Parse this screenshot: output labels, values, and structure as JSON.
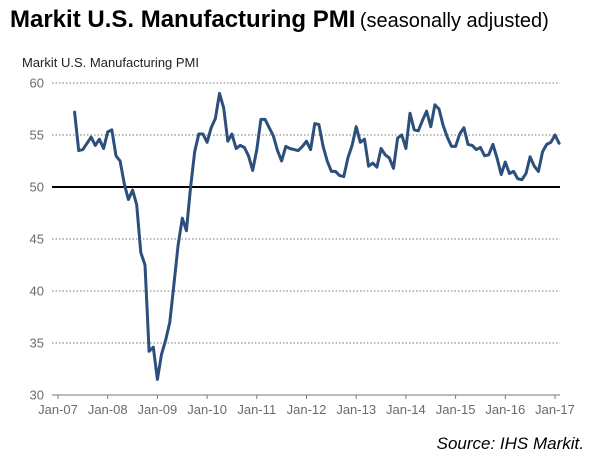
{
  "header": {
    "title": "Markit U.S. Manufacturing PMI",
    "subtitle": "(seasonally adjusted)"
  },
  "source": "Source: IHS Markit.",
  "colors": {
    "line": "#2c4f7c",
    "grid": "#7a7a7a",
    "threshold": "#000000",
    "tick_text": "#6b6b6b"
  },
  "chart_data": {
    "type": "line",
    "title": "Markit U.S. Manufacturing PMI",
    "subtitle": "(seasonally adjusted)",
    "plot_label": "Markit U.S. Manufacturing PMI",
    "xlabel": "",
    "ylabel": "",
    "ylim": [
      30,
      60
    ],
    "y_ticks": [
      30,
      35,
      40,
      45,
      50,
      55,
      60
    ],
    "x_ticks": [
      "Jan-07",
      "Jan-08",
      "Jan-09",
      "Jan-10",
      "Jan-11",
      "Jan-12",
      "Jan-13",
      "Jan-14",
      "Jan-15",
      "Jan-16",
      "Jan-17"
    ],
    "grid": "horizontal dashed",
    "reference_line": 50,
    "legend": "none",
    "series": [
      {
        "x": [
          "2007-05",
          "2007-06",
          "2007-07",
          "2007-08",
          "2007-09",
          "2007-10",
          "2007-11",
          "2007-12",
          "2008-01",
          "2008-02",
          "2008-03",
          "2008-04",
          "2008-05",
          "2008-06",
          "2008-07",
          "2008-08",
          "2008-09",
          "2008-10",
          "2008-11",
          "2008-12",
          "2009-01",
          "2009-02",
          "2009-03",
          "2009-04",
          "2009-05",
          "2009-06",
          "2009-07",
          "2009-08",
          "2009-09",
          "2009-10",
          "2009-11",
          "2009-12",
          "2010-01",
          "2010-02",
          "2010-03",
          "2010-04",
          "2010-05",
          "2010-06",
          "2010-07",
          "2010-08",
          "2010-09",
          "2010-10",
          "2010-11",
          "2010-12",
          "2011-01",
          "2011-02",
          "2011-03",
          "2011-04",
          "2011-05",
          "2011-06",
          "2011-07",
          "2011-08",
          "2011-09",
          "2011-10",
          "2011-11",
          "2011-12",
          "2012-01",
          "2012-02",
          "2012-03",
          "2012-04",
          "2012-05",
          "2012-06",
          "2012-07",
          "2012-08",
          "2012-09",
          "2012-10",
          "2012-11",
          "2012-12",
          "2013-01",
          "2013-02",
          "2013-03",
          "2013-04",
          "2013-05",
          "2013-06",
          "2013-07",
          "2013-08",
          "2013-09",
          "2013-10",
          "2013-11",
          "2013-12",
          "2014-01",
          "2014-02",
          "2014-03",
          "2014-04",
          "2014-05",
          "2014-06",
          "2014-07",
          "2014-08",
          "2014-09",
          "2014-10",
          "2014-11",
          "2014-12",
          "2015-01",
          "2015-02",
          "2015-03",
          "2015-04",
          "2015-05",
          "2015-06",
          "2015-07",
          "2015-08",
          "2015-09",
          "2015-10",
          "2015-11",
          "2015-12",
          "2016-01",
          "2016-02",
          "2016-03",
          "2016-04",
          "2016-05",
          "2016-06",
          "2016-07",
          "2016-08",
          "2016-09",
          "2016-10",
          "2016-11",
          "2016-12",
          "2017-01",
          "2017-02"
        ],
        "values": [
          57.2,
          53.5,
          53.6,
          54.2,
          54.8,
          54.0,
          54.6,
          53.7,
          55.3,
          55.5,
          53.0,
          52.5,
          50.3,
          48.8,
          49.7,
          48.3,
          43.7,
          42.5,
          34.2,
          34.6,
          31.5,
          33.9,
          35.3,
          37.0,
          40.7,
          44.4,
          47.0,
          45.8,
          49.9,
          53.4,
          55.1,
          55.1,
          54.3,
          55.7,
          56.6,
          59.0,
          57.6,
          54.4,
          55.1,
          53.7,
          54.0,
          53.8,
          53.0,
          51.6,
          53.6,
          56.5,
          56.5,
          55.7,
          54.9,
          53.5,
          52.5,
          53.9,
          53.7,
          53.6,
          53.5,
          53.9,
          54.4,
          53.6,
          56.1,
          56.0,
          53.9,
          52.5,
          51.5,
          51.5,
          51.1,
          51.0,
          52.8,
          54.0,
          55.8,
          54.3,
          54.6,
          52.0,
          52.3,
          51.9,
          53.7,
          53.1,
          52.8,
          51.8,
          54.7,
          55.0,
          53.7,
          57.1,
          55.5,
          55.4,
          56.4,
          57.3,
          55.8,
          57.9,
          57.5,
          55.9,
          54.8,
          53.9,
          53.9,
          55.1,
          55.7,
          54.1,
          54.0,
          53.6,
          53.8,
          53.0,
          53.1,
          54.1,
          52.8,
          51.2,
          52.4,
          51.3,
          51.5,
          50.8,
          50.7,
          51.3,
          52.9,
          52.0,
          51.5,
          53.4,
          54.1,
          54.3,
          55.0,
          54.2
        ]
      }
    ]
  }
}
